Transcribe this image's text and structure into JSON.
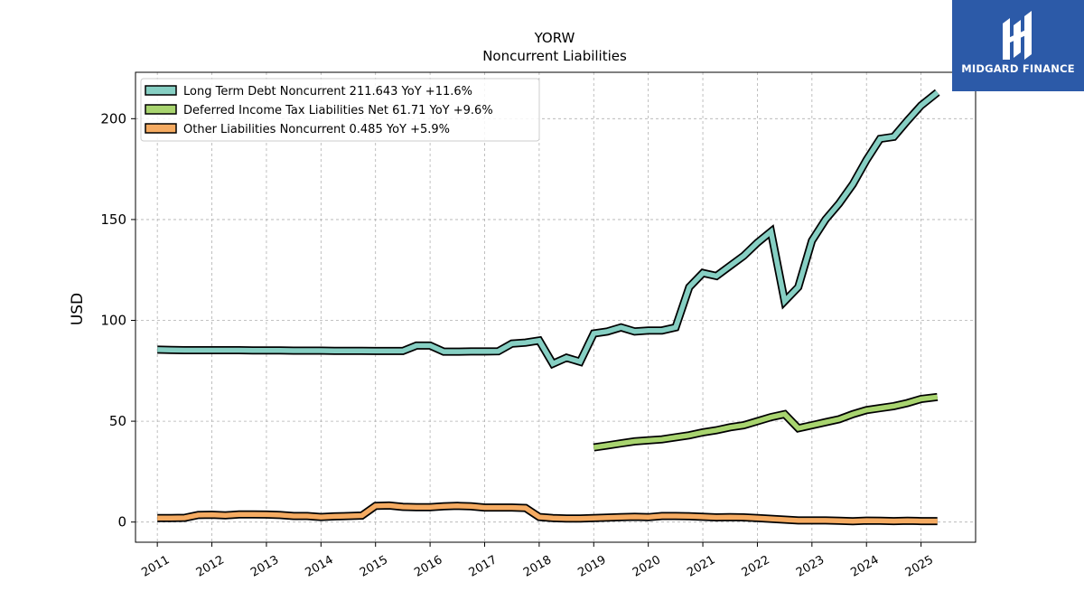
{
  "brand": {
    "name": "MIDGARD FINANCE",
    "bg_color": "#2c5aa8"
  },
  "chart_data": {
    "type": "line",
    "title": "YORW",
    "subtitle": "Noncurrent  Liabilities",
    "xlabel": "",
    "ylabel": "USD",
    "xlim": [
      2010.6,
      2026.0
    ],
    "ylim": [
      -10,
      223
    ],
    "x_ticks": [
      2011,
      2012,
      2013,
      2014,
      2015,
      2016,
      2017,
      2018,
      2019,
      2020,
      2021,
      2022,
      2023,
      2024,
      2025
    ],
    "x_tick_labels": [
      "2011",
      "2012",
      "2013",
      "2014",
      "2015",
      "2016",
      "2017",
      "2018",
      "2019",
      "2020",
      "2021",
      "2022",
      "2023",
      "2024",
      "2025"
    ],
    "y_ticks": [
      0,
      50,
      100,
      150,
      200
    ],
    "y_tick_labels": [
      "0",
      "50",
      "100",
      "150",
      "200"
    ],
    "grid": true,
    "legend_position": "top-left",
    "series": [
      {
        "name": "Long Term Debt Noncurrent  211.643 YoY +11.6%",
        "color": "#86cfc3",
        "x": [
          2011.0,
          2011.25,
          2011.5,
          2011.75,
          2012.0,
          2012.25,
          2012.5,
          2012.75,
          2013.0,
          2013.25,
          2013.5,
          2013.75,
          2014.0,
          2014.25,
          2014.5,
          2014.75,
          2015.0,
          2015.25,
          2015.5,
          2015.75,
          2016.0,
          2016.25,
          2016.5,
          2016.75,
          2017.0,
          2017.25,
          2017.5,
          2017.75,
          2018.0,
          2018.25,
          2018.5,
          2018.75,
          2019.0,
          2019.25,
          2019.5,
          2019.75,
          2020.0,
          2020.25,
          2020.5,
          2020.75,
          2021.0,
          2021.25,
          2021.5,
          2021.75,
          2022.0,
          2022.25,
          2022.5,
          2022.75,
          2023.0,
          2023.25,
          2023.5,
          2023.75,
          2024.0,
          2024.25,
          2024.5,
          2024.75,
          2025.0,
          2025.3
        ],
        "values": [
          85.5,
          85.3,
          85.2,
          85.2,
          85.2,
          85.2,
          85.2,
          85.1,
          85.1,
          85.1,
          85.0,
          85.0,
          85.0,
          84.9,
          84.9,
          84.9,
          84.8,
          84.8,
          84.8,
          87.5,
          87.5,
          84.5,
          84.5,
          84.6,
          84.6,
          84.7,
          88.5,
          89.0,
          90.0,
          78.5,
          81.5,
          79.5,
          93.5,
          94.5,
          96.5,
          94.5,
          95.0,
          95.0,
          96.5,
          116.5,
          123.5,
          122.0,
          127.0,
          132.0,
          138.5,
          144.0,
          109.5,
          116.5,
          139.5,
          150.0,
          158.0,
          167.5,
          179.5,
          190.0,
          191.0,
          199.0,
          206.5,
          213.0
        ]
      },
      {
        "name": "Deferred Income Tax Liabilities Net  61.71 YoY +9.6%",
        "color": "#a8d46f",
        "x": [
          2019.0,
          2019.25,
          2019.5,
          2019.75,
          2020.0,
          2020.25,
          2020.5,
          2020.75,
          2021.0,
          2021.25,
          2021.5,
          2021.75,
          2022.0,
          2022.25,
          2022.5,
          2022.75,
          2023.0,
          2023.25,
          2023.5,
          2023.75,
          2024.0,
          2024.25,
          2024.5,
          2024.75,
          2025.0,
          2025.3
        ],
        "values": [
          37.0,
          38.0,
          39.0,
          40.0,
          40.5,
          41.0,
          42.0,
          43.0,
          44.5,
          45.5,
          47.0,
          48.0,
          50.0,
          52.0,
          53.5,
          46.5,
          48.0,
          49.5,
          51.0,
          53.5,
          55.5,
          56.5,
          57.5,
          59.0,
          61.0,
          62.0
        ]
      },
      {
        "name": "Other Liabilities Noncurrent  0.485 YoY +5.9%",
        "color": "#f5ab62",
        "x": [
          2011.0,
          2011.25,
          2011.5,
          2011.75,
          2012.0,
          2012.25,
          2012.5,
          2012.75,
          2013.0,
          2013.25,
          2013.5,
          2013.75,
          2014.0,
          2014.25,
          2014.5,
          2014.75,
          2015.0,
          2015.25,
          2015.5,
          2015.75,
          2016.0,
          2016.25,
          2016.5,
          2016.75,
          2017.0,
          2017.25,
          2017.5,
          2017.75,
          2018.0,
          2018.25,
          2018.5,
          2018.75,
          2019.0,
          2019.25,
          2019.5,
          2019.75,
          2020.0,
          2020.25,
          2020.5,
          2020.75,
          2021.0,
          2021.25,
          2021.5,
          2021.75,
          2022.0,
          2022.25,
          2022.5,
          2022.75,
          2023.0,
          2023.25,
          2023.5,
          2023.75,
          2024.0,
          2024.25,
          2024.5,
          2024.75,
          2025.0,
          2025.3
        ],
        "values": [
          2.0,
          2.0,
          2.1,
          3.5,
          3.6,
          3.3,
          3.8,
          3.8,
          3.7,
          3.5,
          3.0,
          3.0,
          2.5,
          2.8,
          3.0,
          3.2,
          8.0,
          8.2,
          7.5,
          7.4,
          7.4,
          7.8,
          8.0,
          7.8,
          7.2,
          7.2,
          7.2,
          7.0,
          2.5,
          2.0,
          1.8,
          1.8,
          2.0,
          2.2,
          2.4,
          2.6,
          2.4,
          3.0,
          3.0,
          2.9,
          2.6,
          2.3,
          2.4,
          2.3,
          2.0,
          1.6,
          1.2,
          0.8,
          0.8,
          0.8,
          0.6,
          0.4,
          0.7,
          0.6,
          0.5,
          0.6,
          0.5,
          0.5
        ]
      }
    ]
  }
}
